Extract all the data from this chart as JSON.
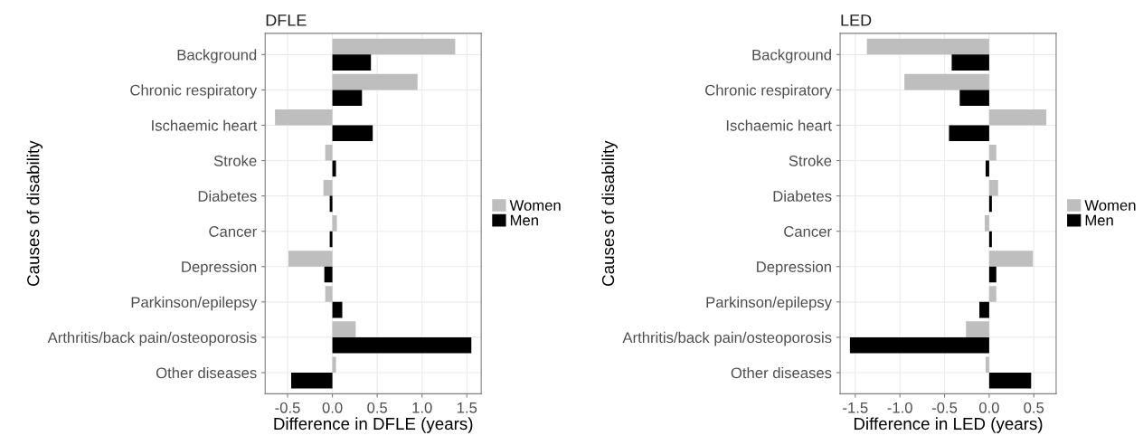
{
  "chart_data": [
    {
      "type": "bar",
      "orientation": "horizontal",
      "title": "DFLE",
      "xlabel": "Difference in DFLE (years)",
      "ylabel": "Causes of disability",
      "categories": [
        "Background",
        "Chronic respiratory",
        "Ischaemic heart",
        "Stroke",
        "Diabetes",
        "Cancer",
        "Depression",
        "Parkinson/epilepsy",
        "Arthritis/back pain/osteoporosis",
        "Other diseases"
      ],
      "series": [
        {
          "name": "Women",
          "color": "#bebebe",
          "values": [
            1.37,
            0.95,
            -0.64,
            -0.08,
            -0.1,
            0.05,
            -0.49,
            -0.08,
            0.26,
            0.04
          ]
        },
        {
          "name": "Men",
          "color": "#000000",
          "values": [
            0.43,
            0.33,
            0.45,
            0.04,
            -0.03,
            -0.03,
            -0.09,
            0.11,
            1.55,
            -0.46
          ]
        }
      ],
      "xlim": [
        -0.75,
        1.66
      ],
      "xticks": [
        {
          "value": -0.5,
          "label": "-0.5"
        },
        {
          "value": 0,
          "label": "0.0"
        },
        {
          "value": 0.5,
          "label": "0.5"
        },
        {
          "value": 1,
          "label": "1.0"
        },
        {
          "value": 1.5,
          "label": "1.5"
        }
      ],
      "grid": true,
      "legend": "right"
    },
    {
      "type": "bar",
      "orientation": "horizontal",
      "title": "LED",
      "xlabel": "Difference in LED (years)",
      "ylabel": "Causes of disability",
      "categories": [
        "Background",
        "Chronic respiratory",
        "Ischaemic heart",
        "Stroke",
        "Diabetes",
        "Cancer",
        "Depression",
        "Parkinson/epilepsy",
        "Arthritis/back pain/osteoporosis",
        "Other diseases"
      ],
      "series": [
        {
          "name": "Women",
          "color": "#bebebe",
          "values": [
            -1.37,
            -0.95,
            0.64,
            0.08,
            0.1,
            -0.05,
            0.49,
            0.08,
            -0.26,
            -0.04
          ]
        },
        {
          "name": "Men",
          "color": "#000000",
          "values": [
            -0.42,
            -0.33,
            -0.45,
            -0.04,
            0.03,
            0.03,
            0.08,
            -0.11,
            -1.56,
            0.47
          ]
        }
      ],
      "xlim": [
        -1.67,
        0.75
      ],
      "xticks": [
        {
          "value": -1.5,
          "label": "-1.5"
        },
        {
          "value": -1.0,
          "label": "-1.0"
        },
        {
          "value": -0.5,
          "label": "-0.5"
        },
        {
          "value": 0,
          "label": "0.0"
        },
        {
          "value": 0.5,
          "label": "0.5"
        }
      ],
      "grid": true,
      "legend": "right"
    }
  ]
}
